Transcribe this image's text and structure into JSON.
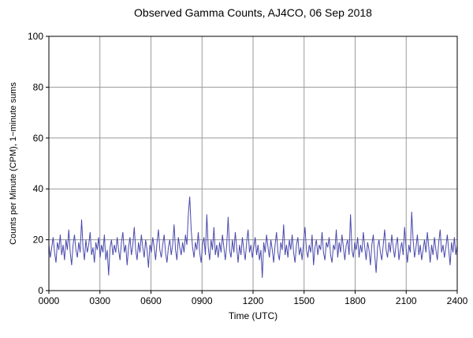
{
  "chart_data": {
    "type": "line",
    "title": "Observed Gamma Counts, AJ4CO, 06 Sep 2018",
    "xlabel": "Time (UTC)",
    "ylabel": "Counts per Minute (CPM), 1−minute sums",
    "xlim": [
      0,
      2400
    ],
    "ylim": [
      0,
      100
    ],
    "x_tick_labels": [
      "0000",
      "0300",
      "0600",
      "0900",
      "1200",
      "1500",
      "1800",
      "2100",
      "2400"
    ],
    "y_ticks": [
      0,
      20,
      40,
      60,
      80,
      100
    ],
    "y_tick_labels": [
      "0",
      "20",
      "40",
      "60",
      "80",
      "100"
    ],
    "grid": true,
    "legend": "none",
    "line_color": "#4949ad",
    "grid_color": "#9a9a9a",
    "frame_color": "#000000",
    "series_name": "Gamma counts (CPM, 1-minute sums)",
    "values": [
      18,
      13,
      17,
      21,
      15,
      11,
      19,
      16,
      22,
      14,
      18,
      12,
      20,
      16,
      24,
      15,
      10,
      18,
      22,
      16,
      13,
      19,
      15,
      28,
      17,
      12,
      20,
      15,
      18,
      23,
      14,
      17,
      11,
      19,
      16,
      21,
      13,
      18,
      15,
      22,
      12,
      16,
      6,
      17,
      20,
      14,
      18,
      15,
      21,
      16,
      12,
      19,
      23,
      15,
      18,
      10,
      17,
      21,
      14,
      18,
      25,
      16,
      12,
      19,
      15,
      22,
      17,
      13,
      20,
      16,
      9,
      18,
      15,
      21,
      17,
      12,
      19,
      24,
      16,
      13,
      18,
      22,
      15,
      11,
      17,
      20,
      14,
      18,
      26,
      16,
      12,
      21,
      17,
      14,
      19,
      15,
      22,
      18,
      30,
      37,
      24,
      17,
      13,
      19,
      16,
      23,
      15,
      11,
      18,
      21,
      14,
      30,
      17,
      12,
      20,
      16,
      25,
      14,
      18,
      13,
      19,
      15,
      22,
      17,
      12,
      18,
      29,
      16,
      13,
      20,
      15,
      23,
      17,
      11,
      18,
      14,
      21,
      16,
      12,
      19,
      24,
      15,
      18,
      13,
      17,
      21,
      14,
      18,
      12,
      16,
      5,
      19,
      15,
      22,
      17,
      13,
      20,
      16,
      11,
      18,
      23,
      15,
      12,
      19,
      16,
      26,
      14,
      18,
      13,
      20,
      16,
      22,
      15,
      11,
      18,
      21,
      14,
      17,
      12,
      19,
      25,
      16,
      13,
      18,
      15,
      22,
      10,
      17,
      20,
      14,
      18,
      16,
      23,
      15,
      12,
      19,
      17,
      21,
      14,
      11,
      18,
      16,
      24,
      13,
      19,
      15,
      22,
      17,
      12,
      18,
      20,
      14,
      30,
      16,
      13,
      19,
      16,
      21,
      13,
      18,
      15,
      23,
      17,
      12,
      19,
      16,
      10,
      18,
      22,
      14,
      7,
      17,
      20,
      15,
      12,
      18,
      24,
      16,
      13,
      19,
      15,
      22,
      17,
      13,
      18,
      21,
      12,
      16,
      19,
      14,
      25,
      17,
      11,
      18,
      15,
      31,
      20,
      13,
      17,
      22,
      14,
      18,
      12,
      16,
      20,
      15,
      23,
      17,
      11,
      18,
      14,
      21,
      16,
      12,
      19,
      24,
      15,
      18,
      13,
      17,
      22,
      16,
      10,
      19,
      15,
      21,
      14,
      18
    ]
  }
}
